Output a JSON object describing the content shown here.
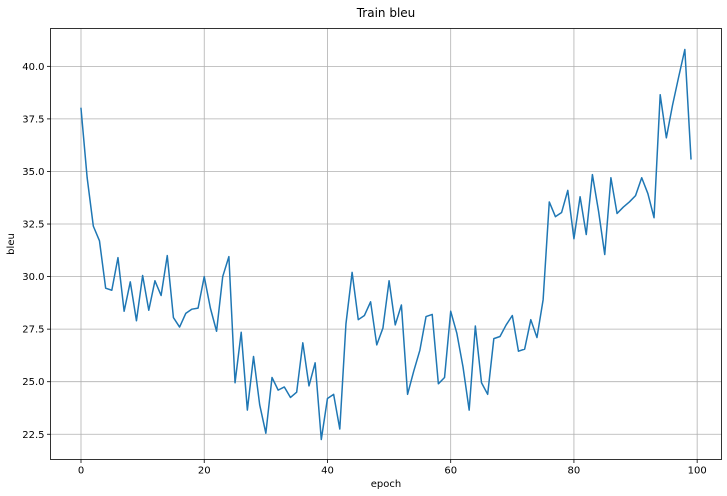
{
  "chart_data": {
    "type": "line",
    "title": "Train bleu",
    "xlabel": "epoch",
    "ylabel": "bleu",
    "xlim": [
      -4.95,
      103.95
    ],
    "ylim": [
      21.3,
      41.8
    ],
    "xticks": [
      0,
      20,
      40,
      60,
      80,
      100
    ],
    "yticks": [
      22.5,
      25.0,
      27.5,
      30.0,
      32.5,
      35.0,
      37.5,
      40.0
    ],
    "ytick_labels": [
      "22.5",
      "25.0",
      "27.5",
      "30.0",
      "32.5",
      "35.0",
      "37.5",
      "40.0"
    ],
    "xtick_labels": [
      "0",
      "20",
      "40",
      "60",
      "80",
      "100"
    ],
    "grid": true,
    "line_color": "#1f77b4",
    "series": [
      {
        "x": [
          0,
          1,
          2,
          3,
          4,
          5,
          6,
          7,
          8,
          9,
          10,
          11,
          12,
          13,
          14,
          15,
          16,
          17,
          18,
          19,
          20,
          21,
          22,
          23,
          24,
          25,
          26,
          27,
          28,
          29,
          30,
          31,
          32,
          33,
          34,
          35,
          36,
          37,
          38,
          39,
          40,
          41,
          42,
          43,
          44,
          45,
          46,
          47,
          48,
          49,
          50,
          51,
          52,
          53,
          54,
          55,
          56,
          57,
          58,
          59,
          60,
          61,
          62,
          63,
          64,
          65,
          66,
          67,
          68,
          69,
          70,
          71,
          72,
          73,
          74,
          75,
          76,
          77,
          78,
          79,
          80,
          81,
          82,
          83,
          84,
          85,
          86,
          87,
          88,
          89,
          90,
          91,
          92,
          93,
          94,
          95,
          96,
          97,
          98,
          99
        ],
        "values": [
          38.0,
          34.7,
          32.4,
          31.7,
          29.45,
          29.35,
          30.9,
          28.35,
          29.75,
          27.9,
          30.05,
          28.4,
          29.8,
          29.1,
          31.0,
          28.05,
          27.6,
          28.25,
          28.45,
          28.5,
          30.0,
          28.5,
          27.4,
          30.0,
          30.95,
          24.95,
          27.35,
          23.65,
          26.2,
          23.9,
          22.55,
          25.2,
          24.6,
          24.75,
          24.25,
          24.5,
          26.85,
          24.8,
          25.9,
          22.25,
          24.2,
          24.4,
          22.75,
          27.75,
          30.2,
          27.95,
          28.15,
          28.8,
          26.75,
          27.55,
          29.8,
          27.7,
          28.65,
          24.4,
          25.5,
          26.5,
          28.1,
          28.2,
          24.9,
          25.2,
          28.35,
          27.3,
          25.7,
          23.65,
          27.65,
          24.95,
          24.4,
          27.05,
          27.15,
          27.7,
          28.15,
          26.45,
          26.55,
          27.95,
          27.1,
          28.9,
          33.55,
          32.85,
          33.05,
          34.1,
          31.8,
          33.8,
          32.0,
          34.85,
          33.1,
          31.05,
          34.7,
          33.0,
          33.3,
          33.55,
          33.85,
          34.7,
          33.95,
          32.8,
          38.65,
          36.6,
          38.15,
          39.5,
          40.8,
          35.6
        ]
      }
    ]
  }
}
